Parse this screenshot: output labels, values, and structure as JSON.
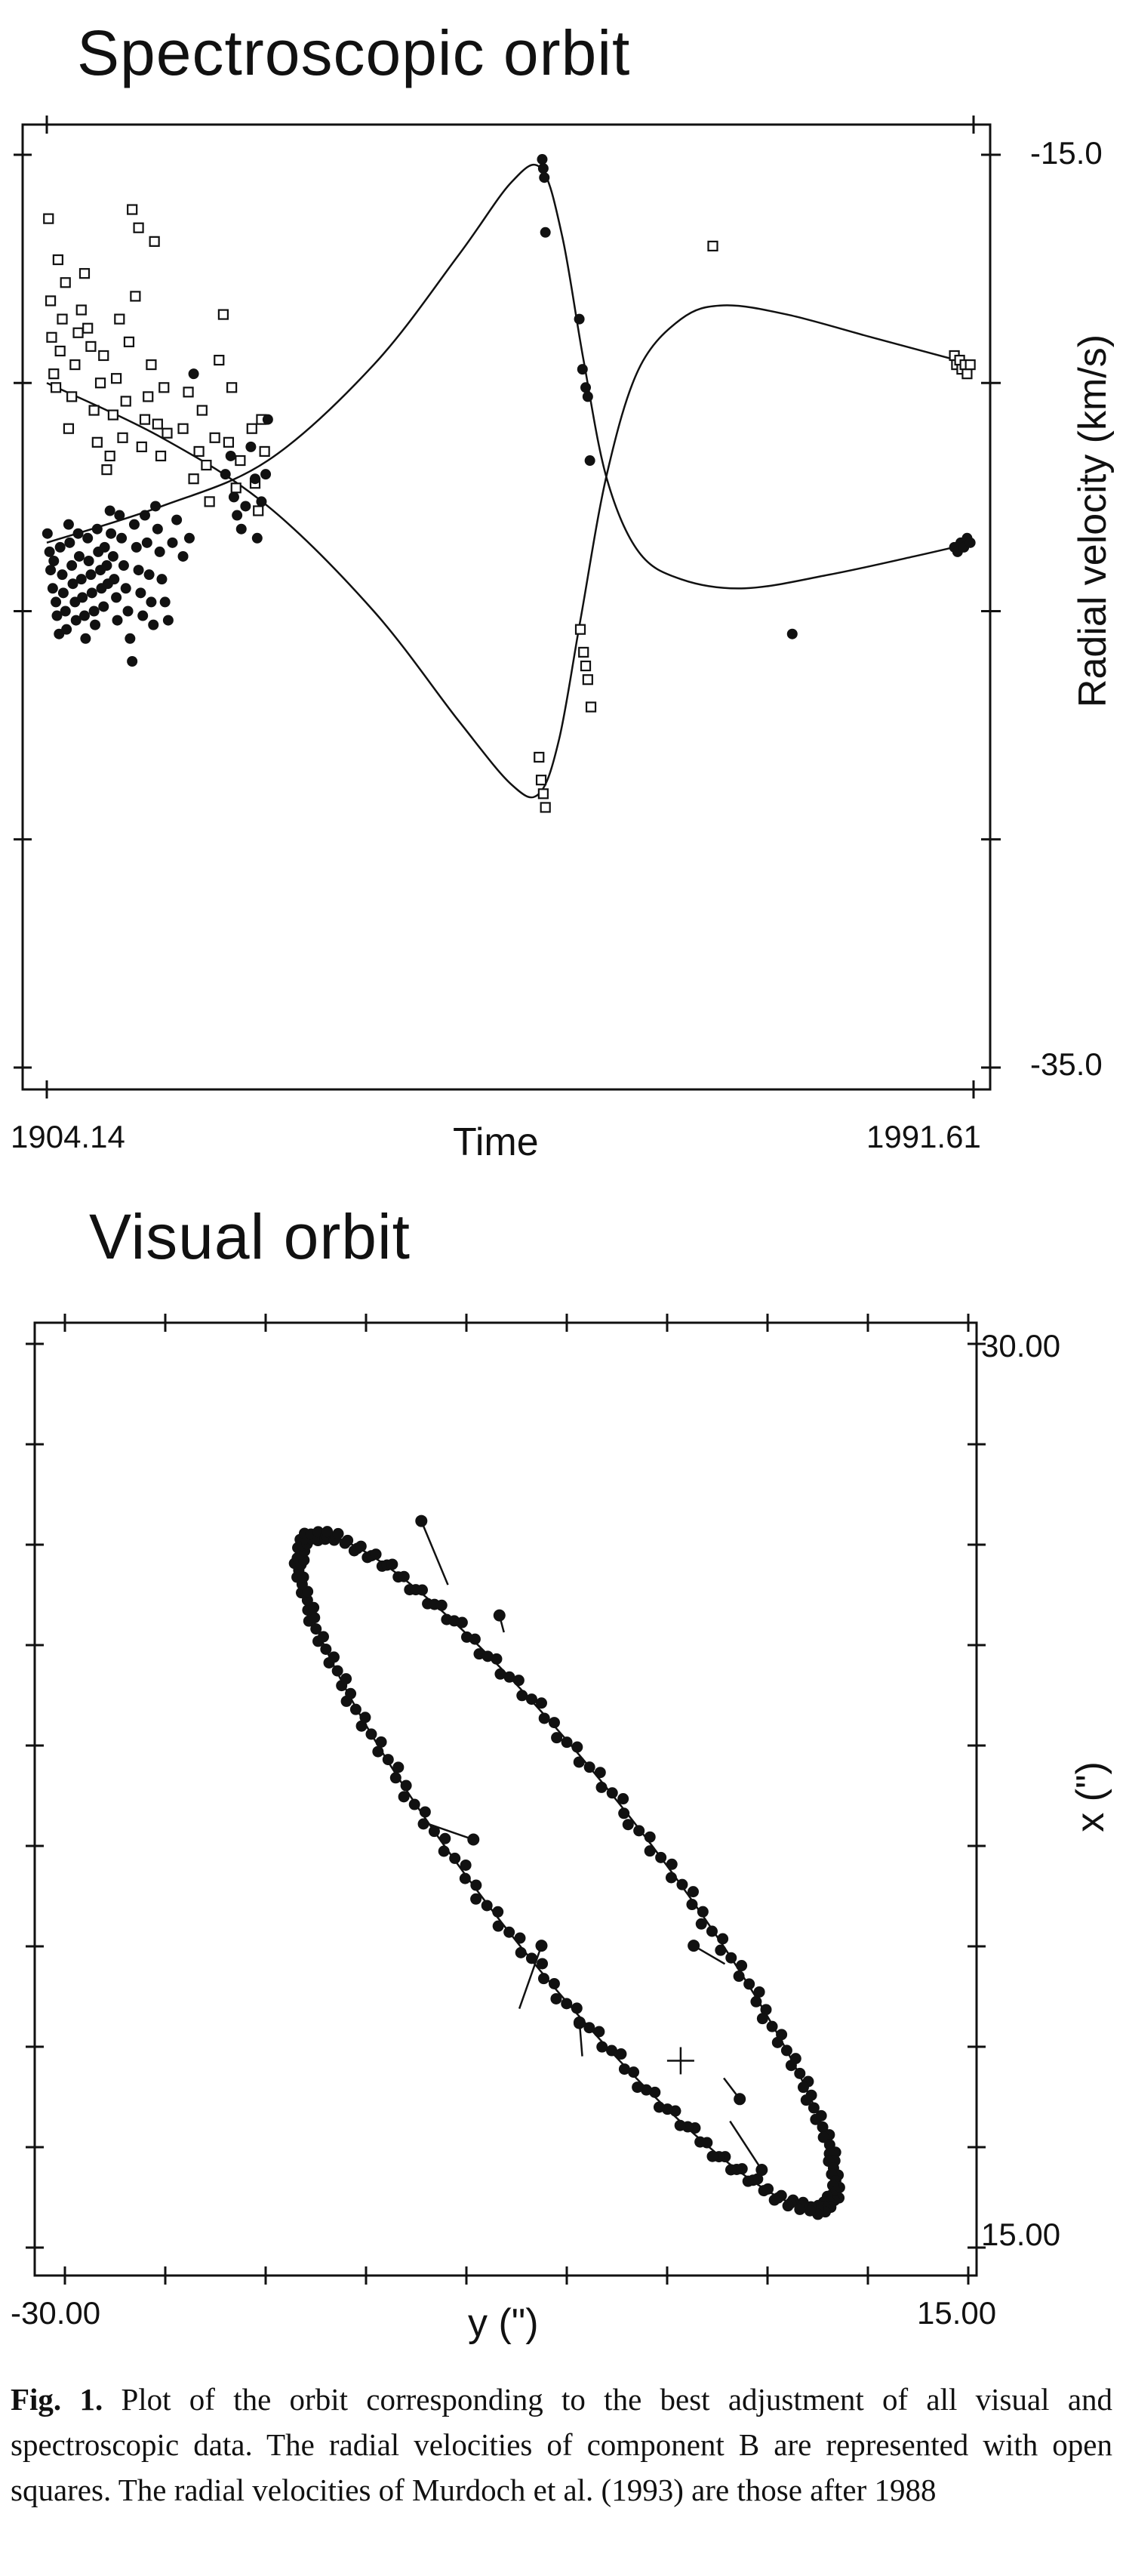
{
  "chart_data": [
    {
      "type": "scatter",
      "title": "Spectroscopic orbit",
      "xlabel": "Time",
      "ylabel": "Radial velocity (km/s)",
      "xlim": [
        1904.14,
        1991.61
      ],
      "ylim": [
        -35.0,
        -15.0
      ],
      "x_tick_labels": [
        "1904.14",
        "1991.61"
      ],
      "y_tick_labels": [
        "-15.0",
        "-35.0"
      ],
      "grid": false,
      "series": [
        {
          "marker": "open-square",
          "points": [
            [
              1904.3,
              -16.4
            ],
            [
              1904.5,
              -18.2
            ],
            [
              1904.6,
              -19.0
            ],
            [
              1904.8,
              -19.8
            ],
            [
              1905.0,
              -20.1
            ],
            [
              1905.2,
              -17.3
            ],
            [
              1905.4,
              -19.3
            ],
            [
              1905.6,
              -18.6
            ],
            [
              1905.9,
              -17.8
            ],
            [
              1906.2,
              -21.0
            ],
            [
              1906.5,
              -20.3
            ],
            [
              1906.8,
              -19.6
            ],
            [
              1907.1,
              -18.9
            ],
            [
              1907.4,
              -18.4
            ],
            [
              1907.7,
              -17.6
            ],
            [
              1908.0,
              -18.8
            ],
            [
              1908.3,
              -19.2
            ],
            [
              1908.6,
              -20.6
            ],
            [
              1908.9,
              -21.3
            ],
            [
              1909.2,
              -20.0
            ],
            [
              1909.5,
              -19.4
            ],
            [
              1909.8,
              -21.9
            ],
            [
              1910.1,
              -21.6
            ],
            [
              1910.4,
              -20.7
            ],
            [
              1910.7,
              -19.9
            ],
            [
              1911.0,
              -18.6
            ],
            [
              1911.3,
              -21.2
            ],
            [
              1911.6,
              -20.4
            ],
            [
              1911.9,
              -19.1
            ],
            [
              1912.2,
              -16.2
            ],
            [
              1912.5,
              -18.1
            ],
            [
              1912.8,
              -16.6
            ],
            [
              1913.1,
              -21.4
            ],
            [
              1913.4,
              -20.8
            ],
            [
              1913.7,
              -20.3
            ],
            [
              1914.0,
              -19.6
            ],
            [
              1914.3,
              -16.9
            ],
            [
              1914.6,
              -20.9
            ],
            [
              1914.9,
              -21.6
            ],
            [
              1915.2,
              -20.1
            ],
            [
              1915.5,
              -21.1
            ],
            [
              1917.0,
              -21.0
            ],
            [
              1917.5,
              -20.2
            ],
            [
              1918.0,
              -22.1
            ],
            [
              1918.5,
              -21.5
            ],
            [
              1918.8,
              -20.6
            ],
            [
              1919.2,
              -21.8
            ],
            [
              1919.5,
              -22.6
            ],
            [
              1920.0,
              -21.2
            ],
            [
              1920.4,
              -19.5
            ],
            [
              1920.8,
              -18.5
            ],
            [
              1921.3,
              -21.3
            ],
            [
              1921.6,
              -20.1
            ],
            [
              1922.0,
              -22.3
            ],
            [
              1922.4,
              -21.7
            ],
            [
              1923.5,
              -21.0
            ],
            [
              1923.8,
              -22.2
            ],
            [
              1924.1,
              -22.8
            ],
            [
              1924.4,
              -20.8
            ],
            [
              1924.7,
              -21.5
            ],
            [
              1950.6,
              -28.2
            ],
            [
              1950.8,
              -28.7
            ],
            [
              1951.0,
              -29.0
            ],
            [
              1951.2,
              -29.3
            ],
            [
              1954.5,
              -25.4
            ],
            [
              1954.8,
              -25.9
            ],
            [
              1955.0,
              -26.2
            ],
            [
              1955.2,
              -26.5
            ],
            [
              1955.5,
              -27.1
            ],
            [
              1967.0,
              -17.0
            ],
            [
              1989.8,
              -19.4
            ],
            [
              1990.0,
              -19.6
            ],
            [
              1990.3,
              -19.5
            ],
            [
              1990.5,
              -19.7
            ],
            [
              1990.8,
              -19.6
            ],
            [
              1991.0,
              -19.8
            ],
            [
              1991.3,
              -19.6
            ]
          ]
        },
        {
          "marker": "filled-circle",
          "points": [
            [
              1904.2,
              -23.3
            ],
            [
              1904.4,
              -23.7
            ],
            [
              1904.5,
              -24.1
            ],
            [
              1904.7,
              -24.5
            ],
            [
              1904.8,
              -23.9
            ],
            [
              1905.0,
              -24.8
            ],
            [
              1905.1,
              -25.1
            ],
            [
              1905.3,
              -25.5
            ],
            [
              1905.4,
              -23.6
            ],
            [
              1905.6,
              -24.2
            ],
            [
              1905.7,
              -24.6
            ],
            [
              1905.9,
              -25.0
            ],
            [
              1906.0,
              -25.4
            ],
            [
              1906.2,
              -23.1
            ],
            [
              1906.3,
              -23.5
            ],
            [
              1906.5,
              -24.0
            ],
            [
              1906.6,
              -24.4
            ],
            [
              1906.8,
              -24.8
            ],
            [
              1906.9,
              -25.2
            ],
            [
              1907.1,
              -23.3
            ],
            [
              1907.2,
              -23.8
            ],
            [
              1907.4,
              -24.3
            ],
            [
              1907.5,
              -24.7
            ],
            [
              1907.7,
              -25.1
            ],
            [
              1907.8,
              -25.6
            ],
            [
              1908.0,
              -23.4
            ],
            [
              1908.1,
              -23.9
            ],
            [
              1908.3,
              -24.2
            ],
            [
              1908.4,
              -24.6
            ],
            [
              1908.6,
              -25.0
            ],
            [
              1908.7,
              -25.3
            ],
            [
              1908.9,
              -23.2
            ],
            [
              1909.0,
              -23.7
            ],
            [
              1909.2,
              -24.1
            ],
            [
              1909.3,
              -24.5
            ],
            [
              1909.5,
              -24.9
            ],
            [
              1909.6,
              -23.6
            ],
            [
              1909.8,
              -24.0
            ],
            [
              1909.9,
              -24.4
            ],
            [
              1910.1,
              -22.8
            ],
            [
              1910.2,
              -23.3
            ],
            [
              1910.4,
              -23.8
            ],
            [
              1910.5,
              -24.3
            ],
            [
              1910.7,
              -24.7
            ],
            [
              1910.8,
              -25.2
            ],
            [
              1911.0,
              -22.9
            ],
            [
              1911.2,
              -23.4
            ],
            [
              1911.4,
              -24.0
            ],
            [
              1911.6,
              -24.5
            ],
            [
              1911.8,
              -25.0
            ],
            [
              1912.0,
              -25.6
            ],
            [
              1912.2,
              -26.1
            ],
            [
              1912.4,
              -23.1
            ],
            [
              1912.6,
              -23.6
            ],
            [
              1912.8,
              -24.1
            ],
            [
              1913.0,
              -24.6
            ],
            [
              1913.2,
              -25.1
            ],
            [
              1913.4,
              -22.9
            ],
            [
              1913.6,
              -23.5
            ],
            [
              1913.8,
              -24.2
            ],
            [
              1914.0,
              -24.8
            ],
            [
              1914.2,
              -25.3
            ],
            [
              1914.4,
              -22.7
            ],
            [
              1914.6,
              -23.2
            ],
            [
              1914.8,
              -23.7
            ],
            [
              1915.0,
              -24.3
            ],
            [
              1915.3,
              -24.8
            ],
            [
              1915.6,
              -25.2
            ],
            [
              1916.0,
              -23.5
            ],
            [
              1916.4,
              -23.0
            ],
            [
              1917.0,
              -23.8
            ],
            [
              1917.6,
              -23.4
            ],
            [
              1918.0,
              -19.8
            ],
            [
              1921.0,
              -22.0
            ],
            [
              1921.5,
              -21.6
            ],
            [
              1921.8,
              -22.5
            ],
            [
              1922.1,
              -22.9
            ],
            [
              1922.5,
              -23.2
            ],
            [
              1922.9,
              -22.7
            ],
            [
              1923.4,
              -21.4
            ],
            [
              1923.8,
              -22.1
            ],
            [
              1924.0,
              -23.4
            ],
            [
              1924.4,
              -22.6
            ],
            [
              1924.8,
              -22.0
            ],
            [
              1925.0,
              -20.8
            ],
            [
              1950.9,
              -15.1
            ],
            [
              1951.0,
              -15.3
            ],
            [
              1951.1,
              -15.5
            ],
            [
              1951.2,
              -16.7
            ],
            [
              1954.4,
              -18.6
            ],
            [
              1954.7,
              -19.7
            ],
            [
              1955.0,
              -20.1
            ],
            [
              1955.2,
              -20.3
            ],
            [
              1955.4,
              -21.7
            ],
            [
              1974.5,
              -25.5
            ],
            [
              1989.8,
              -23.6
            ],
            [
              1990.1,
              -23.7
            ],
            [
              1990.4,
              -23.5
            ],
            [
              1990.7,
              -23.6
            ],
            [
              1991.0,
              -23.4
            ],
            [
              1991.3,
              -23.5
            ]
          ]
        }
      ]
    },
    {
      "type": "scatter",
      "title": "Visual orbit",
      "xlabel": "y (\")",
      "ylabel": "x (\")",
      "xlim": [
        -30.0,
        15.0
      ],
      "ylim": [
        15.0,
        30.0
      ],
      "x_tick_labels": [
        "-30.00",
        "15.00"
      ],
      "y_tick_labels": [
        "30.00",
        "15.00"
      ],
      "grid": false,
      "center_marker": [
        0.75,
        17.95
      ],
      "orbit_ellipse": {
        "center": [
          0.75,
          17.95
        ],
        "semi_axes": [
          2.6,
          11.9
        ],
        "rotation_deg": -38
      },
      "points_per_ellipse": 230,
      "outliers": [
        [
          -12.2,
          27.1
        ],
        [
          -4.3,
          18.6
        ],
        [
          -9.6,
          21.7
        ],
        [
          -8.3,
          25.5
        ],
        [
          -6.2,
          19.9
        ],
        [
          3.7,
          17.3
        ],
        [
          4.8,
          16.1
        ],
        [
          1.4,
          19.9
        ]
      ]
    }
  ],
  "caption": {
    "label": "Fig. 1.",
    "text": "Plot of the orbit corresponding to the best adjustment of all visual and spectroscopic data. The radial velocities of component B are represented with open squares. The radial velocities of Murdoch et al. (1993) are those after 1988"
  }
}
